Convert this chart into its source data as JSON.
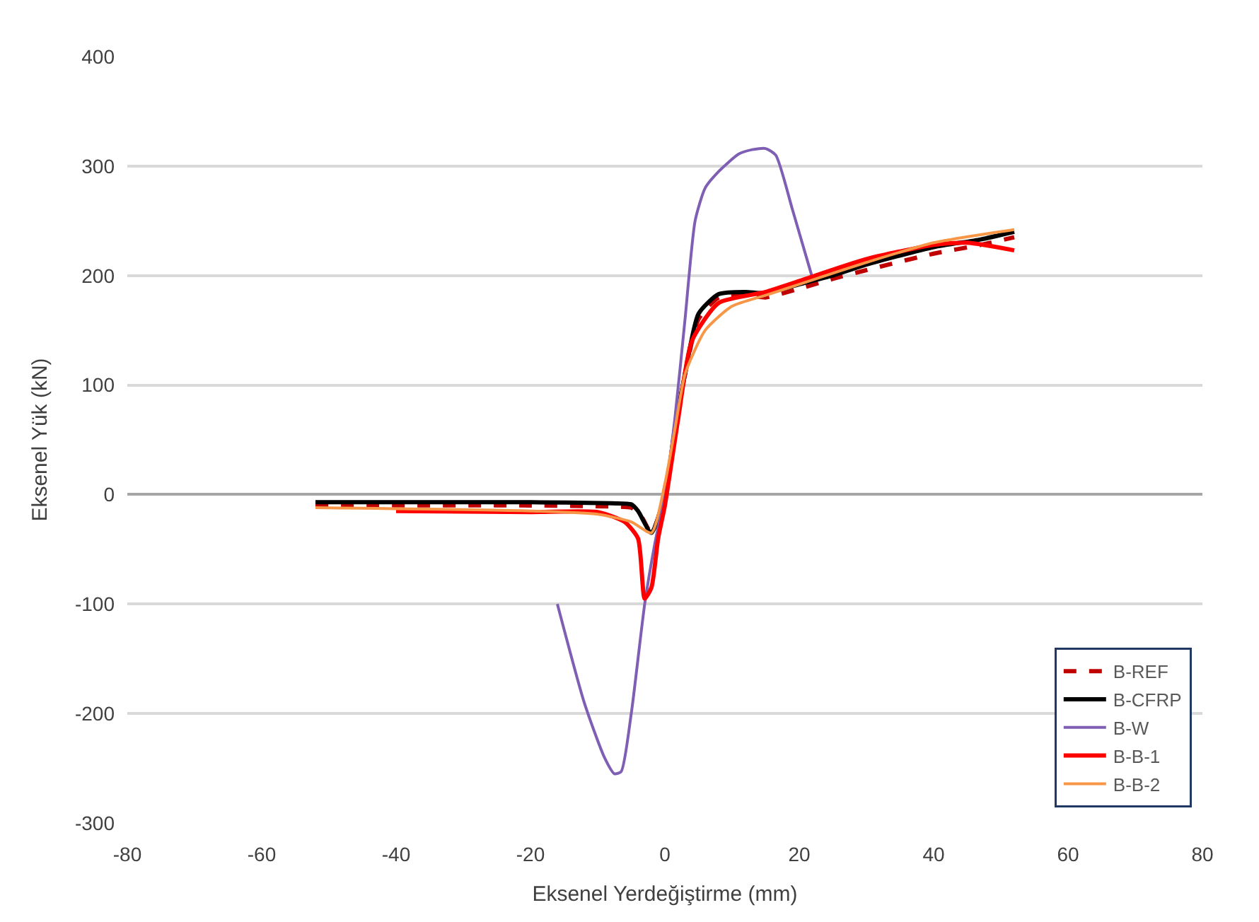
{
  "chart_data": {
    "type": "line",
    "xlabel": "Eksenel Yerdeğiştirme (mm)",
    "ylabel": "Eksenel Yük (kN)",
    "xlim": [
      -80,
      80
    ],
    "xticks": [
      -80,
      -60,
      -40,
      -20,
      0,
      20,
      40,
      60,
      80
    ],
    "ylim": [
      -300,
      400
    ],
    "yticks": [
      -300,
      -200,
      -100,
      0,
      100,
      200,
      300,
      400
    ],
    "grid": "y",
    "legend": "bottom right",
    "marker": "none",
    "series": [
      {
        "name": "B-REF",
        "color": "#c00000",
        "line_style": "dashed",
        "x": [
          -52,
          -20,
          -8,
          -5,
          -3.5,
          -2,
          0,
          1.5,
          3,
          5,
          8,
          12,
          15,
          20,
          25,
          30,
          40,
          47,
          52
        ],
        "values": [
          -10,
          -10,
          -11,
          -12,
          -20,
          -35,
          0,
          60,
          110,
          160,
          180,
          182,
          180,
          188,
          197,
          205,
          220,
          228,
          235
        ]
      },
      {
        "name": "B-CFRP",
        "color": "#000000",
        "line_style": "solid",
        "x": [
          -52,
          -20,
          -8,
          -5,
          -4,
          -2,
          0,
          1.5,
          3,
          5,
          8,
          12,
          15,
          20,
          25,
          30,
          40,
          47,
          52
        ],
        "values": [
          -7,
          -7,
          -8,
          -9,
          -15,
          -35,
          0,
          60,
          110,
          165,
          183,
          185,
          184,
          192,
          200,
          210,
          226,
          233,
          240
        ]
      },
      {
        "name": "B-W",
        "color": "#7f5fb4",
        "line_style": "solid",
        "x": [
          -16,
          -12,
          -9,
          -7.5,
          -6.5,
          -5,
          -3,
          -1.5,
          0,
          1.5,
          3,
          4.5,
          6,
          8,
          11,
          13,
          15,
          16.5,
          19,
          22
        ],
        "values": [
          -100,
          -190,
          -240,
          -255,
          -253,
          -200,
          -100,
          -45,
          0,
          70,
          160,
          250,
          280,
          295,
          311,
          315,
          316,
          310,
          260,
          197
        ]
      },
      {
        "name": "B-B-1",
        "color": "#ff0000",
        "line_style": "solid",
        "x": [
          -40,
          -20,
          -10,
          -6,
          -4,
          -3,
          -2,
          -1,
          0,
          2,
          4,
          8,
          15,
          20,
          30,
          40,
          45,
          52
        ],
        "values": [
          -15,
          -16,
          -16,
          -25,
          -40,
          -95,
          -85,
          -40,
          -10,
          70,
          140,
          175,
          185,
          195,
          215,
          228,
          230,
          223
        ]
      },
      {
        "name": "B-B-2",
        "color": "#f79646",
        "line_style": "solid",
        "x": [
          -52,
          -20,
          -10,
          -5,
          -2,
          0,
          1.5,
          3,
          6,
          10,
          15,
          20,
          30,
          40,
          52
        ],
        "values": [
          -12,
          -15,
          -18,
          -25,
          -35,
          10,
          60,
          110,
          150,
          172,
          182,
          192,
          212,
          230,
          242
        ]
      }
    ]
  }
}
